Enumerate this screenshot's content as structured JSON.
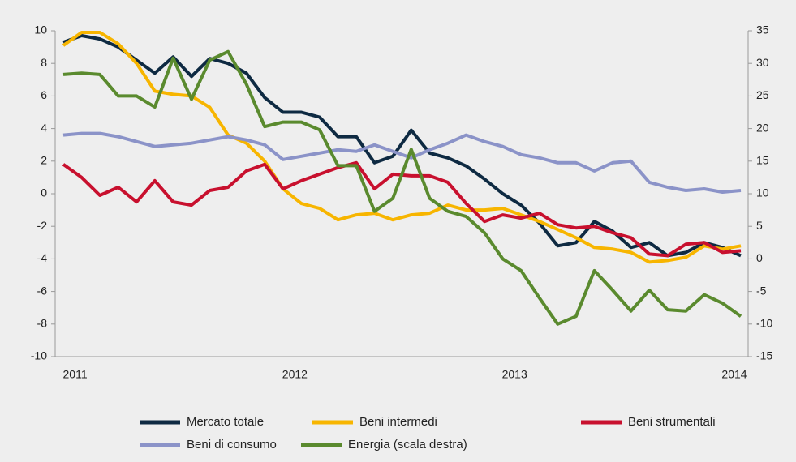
{
  "chart_data": {
    "type": "line",
    "categories": [
      null,
      "2011",
      null,
      null,
      null,
      null,
      null,
      null,
      null,
      null,
      null,
      null,
      null,
      "2012",
      null,
      null,
      null,
      null,
      null,
      null,
      null,
      null,
      null,
      null,
      null,
      "2013",
      null,
      null,
      null,
      null,
      null,
      null,
      null,
      null,
      null,
      null,
      null,
      "2014"
    ],
    "ylim": [
      -10,
      10
    ],
    "yticks": [
      -10,
      -8,
      -6,
      -4,
      -2,
      0,
      2,
      4,
      6,
      8,
      10
    ],
    "y2lim": [
      -15,
      35
    ],
    "y2ticks": [
      -15,
      -10,
      -5,
      0,
      5,
      10,
      15,
      20,
      25,
      30,
      35
    ],
    "legend": "bottom",
    "series": [
      {
        "name": "Mercato totale",
        "color": "#0e2a42",
        "values": [
          9.3,
          9.7,
          9.5,
          9.0,
          8.2,
          7.4,
          8.4,
          7.2,
          8.3,
          8.0,
          7.4,
          5.9,
          5.0,
          5.0,
          4.7,
          3.5,
          3.5,
          1.9,
          2.3,
          3.9,
          2.5,
          2.2,
          1.7,
          0.9,
          0.0,
          -0.7,
          -1.8,
          -3.2,
          -3.0,
          -1.7,
          -2.3,
          -3.3,
          -3.0,
          -3.8,
          -3.6,
          -3.0,
          -3.3,
          -3.8
        ]
      },
      {
        "name": "Beni intermedi",
        "color": "#f7b500",
        "values": [
          9.1,
          9.9,
          9.9,
          9.2,
          8.0,
          6.3,
          6.1,
          6.0,
          5.3,
          3.6,
          3.1,
          2.0,
          0.3,
          -0.6,
          -0.9,
          -1.6,
          -1.3,
          -1.2,
          -1.6,
          -1.3,
          -1.2,
          -0.7,
          -1.0,
          -1.0,
          -0.9,
          -1.3,
          -1.7,
          -2.2,
          -2.7,
          -3.3,
          -3.4,
          -3.6,
          -4.2,
          -4.1,
          -3.9,
          -3.2,
          -3.4,
          -3.2
        ]
      },
      {
        "name": "Beni strumentali",
        "color": "#c8102e",
        "values": [
          1.8,
          1.0,
          -0.1,
          0.4,
          -0.5,
          0.8,
          -0.5,
          -0.7,
          0.2,
          0.4,
          1.4,
          1.8,
          0.3,
          0.8,
          1.2,
          1.6,
          1.9,
          0.3,
          1.2,
          1.1,
          1.1,
          0.7,
          -0.6,
          -1.7,
          -1.3,
          -1.5,
          -1.2,
          -1.9,
          -2.1,
          -2.0,
          -2.4,
          -2.7,
          -3.7,
          -3.8,
          -3.1,
          -3.0,
          -3.6,
          -3.5
        ]
      },
      {
        "name": "Beni di consumo",
        "color": "#8b93c8",
        "values": [
          3.6,
          3.7,
          3.7,
          3.5,
          3.2,
          2.9,
          3.0,
          3.1,
          3.3,
          3.5,
          3.3,
          3.0,
          2.1,
          2.3,
          2.5,
          2.7,
          2.6,
          3.0,
          2.6,
          2.2,
          2.7,
          3.1,
          3.6,
          3.2,
          2.9,
          2.4,
          2.2,
          1.9,
          1.9,
          1.4,
          1.9,
          2.0,
          0.7,
          0.4,
          0.2,
          0.3,
          0.1,
          0.2
        ]
      },
      {
        "name": "Energia (scala destra)",
        "color": "#5a8a2e",
        "axis": "y2",
        "values": [
          28.3,
          28.5,
          28.3,
          25,
          25,
          23.3,
          30.8,
          24.5,
          30.5,
          31.8,
          26.8,
          20.3,
          21,
          21,
          19.8,
          14.3,
          14.3,
          7.3,
          9.3,
          16.8,
          9.3,
          7.3,
          6.5,
          4,
          0,
          -1.8,
          -6,
          -10,
          -8.8,
          -1.8,
          -4.8,
          -8,
          -4.8,
          -7.8,
          -8,
          -5.5,
          -6.8,
          -8.8
        ]
      }
    ]
  }
}
